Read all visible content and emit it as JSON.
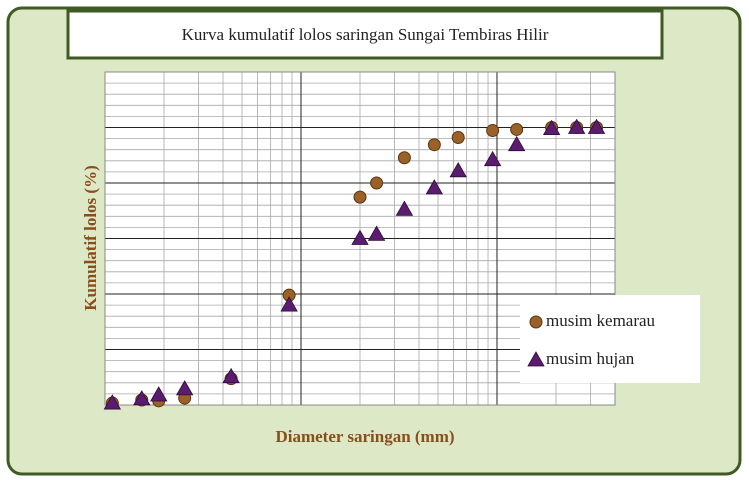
{
  "chart_data": {
    "type": "scatter",
    "title": "Kurva kumulatif lolos saringan Sungai Tembiras Hilir",
    "xlabel": "Diameter saringan (mm)",
    "ylabel": "Kumulatif lolos (%)",
    "xlog": true,
    "grid": true,
    "legend": "lower right",
    "xlim": [
      0.1,
      40
    ],
    "ylim": [
      0,
      120
    ],
    "xticks": [
      0.1,
      1,
      10
    ],
    "yticks": [
      0,
      20,
      40,
      60,
      80,
      100,
      120
    ],
    "series": [
      {
        "name": "musim kemarau",
        "color": "#9a6128",
        "marker": "circle",
        "x": [
          0.109,
          0.154,
          0.188,
          0.255,
          0.44,
          0.87,
          2.0,
          2.43,
          3.37,
          4.79,
          6.34,
          9.5,
          12.6,
          19.0,
          25.5,
          32.2
        ],
        "values": [
          0.7,
          1.8,
          1.5,
          2.5,
          9.5,
          39.6,
          74.9,
          80,
          89.1,
          93.8,
          96.4,
          98.9,
          99.3,
          100,
          100,
          100
        ]
      },
      {
        "name": "musim hujan",
        "color": "#5b1c70",
        "marker": "triangle",
        "x": [
          0.109,
          0.154,
          0.188,
          0.255,
          0.44,
          0.87,
          2.0,
          2.43,
          3.37,
          4.79,
          6.34,
          9.5,
          12.6,
          19.0,
          25.5,
          32.2
        ],
        "values": [
          0.7,
          2.2,
          3.6,
          5.8,
          10.2,
          36,
          60,
          61.5,
          70.5,
          78.2,
          84.4,
          88.4,
          93.8,
          99.6,
          100,
          100
        ]
      }
    ]
  }
}
